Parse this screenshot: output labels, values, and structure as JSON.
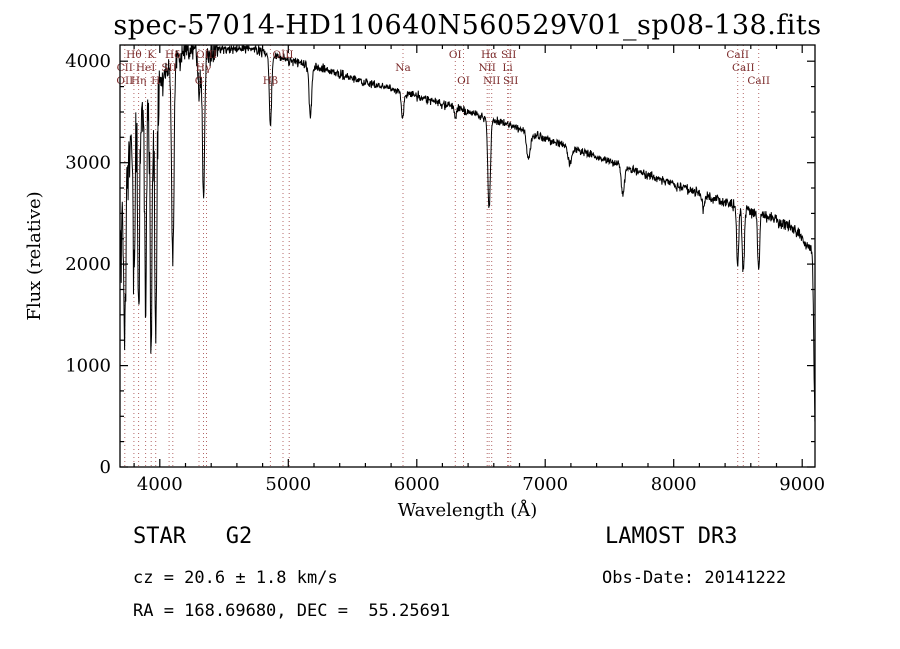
{
  "title": "spec-57014-HD110640N560529V01_sp08-138.fits",
  "annotations": {
    "class_label": "STAR   G2",
    "survey": "LAMOST DR3",
    "cz": "cz = 20.6 ± 1.8 km/s",
    "obs_date": "Obs-Date: 20141222",
    "radec": "RA = 168.69680, DEC =  55.25691"
  },
  "chart_data": {
    "type": "line",
    "title": "spec-57014-HD110640N560529V01_sp08-138.fits",
    "xlabel": "Wavelength (Å)",
    "ylabel": "Flux (relative)",
    "xlim": [
      3690,
      9100
    ],
    "ylim": [
      0,
      4160
    ],
    "x_major_ticks": [
      4000,
      5000,
      6000,
      7000,
      8000,
      9000
    ],
    "x_minor_step": 200,
    "y_major_ticks": [
      0,
      1000,
      2000,
      3000,
      4000
    ],
    "y_minor_step": 250,
    "grid": false,
    "line_color": "#000000",
    "marker_color": "#b46868",
    "noise_seed": 20141222,
    "continuum_points": [
      [
        3690,
        2150
      ],
      [
        3720,
        2500
      ],
      [
        3760,
        3050
      ],
      [
        3800,
        3250
      ],
      [
        3850,
        3420
      ],
      [
        3900,
        3600
      ],
      [
        3950,
        3660
      ],
      [
        4000,
        3760
      ],
      [
        4050,
        3880
      ],
      [
        4100,
        3950
      ],
      [
        4150,
        4030
      ],
      [
        4200,
        4080
      ],
      [
        4250,
        4110
      ],
      [
        4300,
        4130
      ],
      [
        4350,
        4100
      ],
      [
        4400,
        4090
      ],
      [
        4450,
        4110
      ],
      [
        4500,
        4110
      ],
      [
        4550,
        4120
      ],
      [
        4600,
        4120
      ],
      [
        4650,
        4130
      ],
      [
        4700,
        4120
      ],
      [
        4750,
        4110
      ],
      [
        4800,
        4090
      ],
      [
        4850,
        4070
      ],
      [
        4900,
        4050
      ],
      [
        4950,
        4030
      ],
      [
        5000,
        4010
      ],
      [
        5100,
        3980
      ],
      [
        5200,
        3950
      ],
      [
        5300,
        3910
      ],
      [
        5400,
        3870
      ],
      [
        5500,
        3830
      ],
      [
        5600,
        3790
      ],
      [
        5700,
        3760
      ],
      [
        5800,
        3730
      ],
      [
        5900,
        3700
      ],
      [
        6000,
        3660
      ],
      [
        6100,
        3620
      ],
      [
        6200,
        3580
      ],
      [
        6300,
        3540
      ],
      [
        6400,
        3500
      ],
      [
        6500,
        3460
      ],
      [
        6600,
        3420
      ],
      [
        6700,
        3380
      ],
      [
        6800,
        3340
      ],
      [
        6900,
        3290
      ],
      [
        7000,
        3240
      ],
      [
        7100,
        3190
      ],
      [
        7200,
        3150
      ],
      [
        7300,
        3100
      ],
      [
        7400,
        3060
      ],
      [
        7500,
        3010
      ],
      [
        7600,
        2970
      ],
      [
        7700,
        2920
      ],
      [
        7800,
        2880
      ],
      [
        7900,
        2830
      ],
      [
        8000,
        2790
      ],
      [
        8100,
        2740
      ],
      [
        8200,
        2700
      ],
      [
        8300,
        2650
      ],
      [
        8400,
        2610
      ],
      [
        8500,
        2560
      ],
      [
        8600,
        2520
      ],
      [
        8700,
        2480
      ],
      [
        8800,
        2430
      ],
      [
        8900,
        2380
      ],
      [
        9000,
        2250
      ],
      [
        9040,
        2180
      ],
      [
        9070,
        2150
      ],
      [
        9080,
        2100
      ],
      [
        9088,
        1500
      ],
      [
        9094,
        800
      ],
      [
        9100,
        430
      ]
    ],
    "absorption_lines": [
      {
        "wl": 3727,
        "depth": 1500,
        "width": 7
      },
      {
        "wl": 3798,
        "depth": 1500,
        "width": 7
      },
      {
        "wl": 3835,
        "depth": 1800,
        "width": 7
      },
      {
        "wl": 3889,
        "depth": 1900,
        "width": 7
      },
      {
        "wl": 3933,
        "depth": 2500,
        "width": 8
      },
      {
        "wl": 3968,
        "depth": 2500,
        "width": 8
      },
      {
        "wl": 4101,
        "depth": 1900,
        "width": 9
      },
      {
        "wl": 4305,
        "depth": 350,
        "width": 12
      },
      {
        "wl": 4340,
        "depth": 1450,
        "width": 9
      },
      {
        "wl": 4861,
        "depth": 680,
        "width": 9
      },
      {
        "wl": 5172,
        "depth": 520,
        "width": 10
      },
      {
        "wl": 5890,
        "depth": 260,
        "width": 9
      },
      {
        "wl": 6302,
        "depth": 90,
        "width": 8
      },
      {
        "wl": 6563,
        "depth": 880,
        "width": 10
      },
      {
        "wl": 6870,
        "depth": 260,
        "width": 15
      },
      {
        "wl": 7190,
        "depth": 160,
        "width": 14
      },
      {
        "wl": 7605,
        "depth": 280,
        "width": 12
      },
      {
        "wl": 8230,
        "depth": 130,
        "width": 9
      },
      {
        "wl": 8498,
        "depth": 580,
        "width": 8
      },
      {
        "wl": 8542,
        "depth": 640,
        "width": 8
      },
      {
        "wl": 8662,
        "depth": 560,
        "width": 8
      }
    ],
    "noise_bands": [
      {
        "to_wl": 4000,
        "sigma": 190
      },
      {
        "to_wl": 4450,
        "sigma": 70
      },
      {
        "to_wl": 6500,
        "sigma": 22
      },
      {
        "to_wl": 8000,
        "sigma": 20
      },
      {
        "to_wl": 9200,
        "sigma": 30
      }
    ],
    "marker_lines": [
      3727,
      3798,
      3835,
      3889,
      3933,
      3968,
      4072,
      4101,
      4305,
      4340,
      4363,
      4861,
      4959,
      5007,
      5893,
      6300,
      6364,
      6548,
      6563,
      6583,
      6707,
      6716,
      6731,
      8498,
      8542,
      8662
    ],
    "line_labels": [
      {
        "label": "Hθ",
        "wl": 3798,
        "row": 1
      },
      {
        "label": "K",
        "wl": 3933,
        "row": 1
      },
      {
        "label": "Hδ",
        "wl": 4101,
        "row": 1
      },
      {
        "label": "CII",
        "wl": 3727,
        "row": 2
      },
      {
        "label": "HeI",
        "wl": 3889,
        "row": 2
      },
      {
        "label": "SII",
        "wl": 4072,
        "row": 2
      },
      {
        "label": "OII",
        "wl": 3727,
        "row": 3
      },
      {
        "label": "Hη",
        "wl": 3835,
        "row": 3
      },
      {
        "label": "H",
        "wl": 3968,
        "row": 3
      },
      {
        "label": "OIII",
        "wl": 4363,
        "row": 1
      },
      {
        "label": "Hγ",
        "wl": 4340,
        "row": 2
      },
      {
        "label": "G",
        "wl": 4305,
        "row": 3
      },
      {
        "label": "OIII",
        "wl": 4959,
        "row": 1
      },
      {
        "label": "Hβ",
        "wl": 4861,
        "row": 3
      },
      {
        "label": "Na",
        "wl": 5893,
        "row": 2
      },
      {
        "label": "OI",
        "wl": 6300,
        "row": 1
      },
      {
        "label": "Hα",
        "wl": 6563,
        "row": 1
      },
      {
        "label": "SII",
        "wl": 6716,
        "row": 1
      },
      {
        "label": "NII",
        "wl": 6548,
        "row": 2
      },
      {
        "label": "Li",
        "wl": 6707,
        "row": 2
      },
      {
        "label": "OI",
        "wl": 6364,
        "row": 3
      },
      {
        "label": "NII",
        "wl": 6583,
        "row": 3
      },
      {
        "label": "SII",
        "wl": 6731,
        "row": 3
      },
      {
        "label": "CaII",
        "wl": 8498,
        "row": 1
      },
      {
        "label": "CaII",
        "wl": 8542,
        "row": 2
      },
      {
        "label": "CaII",
        "wl": 8662,
        "row": 3
      }
    ]
  }
}
